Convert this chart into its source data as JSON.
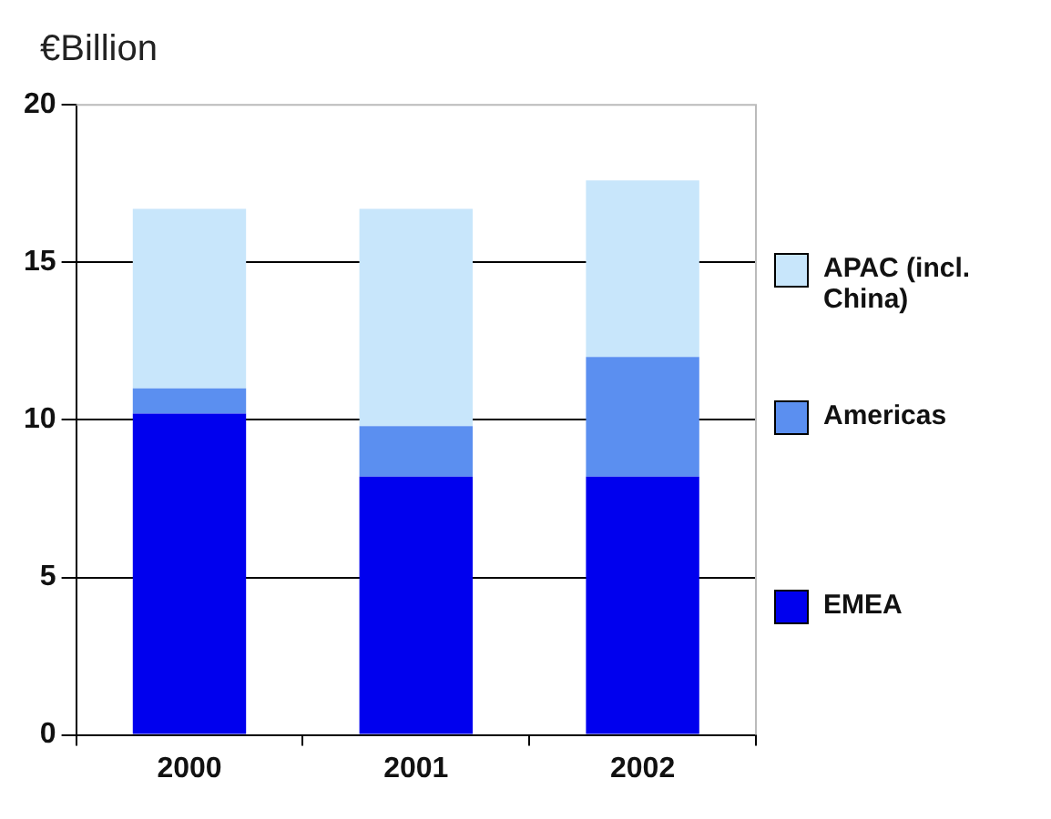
{
  "chart_data": {
    "type": "bar",
    "ylabel": "€Billion",
    "categories": [
      "2000",
      "2001",
      "2002"
    ],
    "stacked": true,
    "ylim": [
      0,
      20
    ],
    "yticks": [
      0,
      5,
      10,
      15,
      20
    ],
    "grid": "y",
    "legend": "right",
    "series": [
      {
        "name": "EMEA",
        "color": "#0000ee",
        "values": [
          10.2,
          8.2,
          8.2
        ]
      },
      {
        "name": "Americas",
        "color": "#5b8ff0",
        "values": [
          0.8,
          1.6,
          3.8
        ]
      },
      {
        "name": "APAC (incl. China)",
        "color": "#c8e6fb",
        "values": [
          5.7,
          6.9,
          5.6
        ]
      }
    ]
  }
}
